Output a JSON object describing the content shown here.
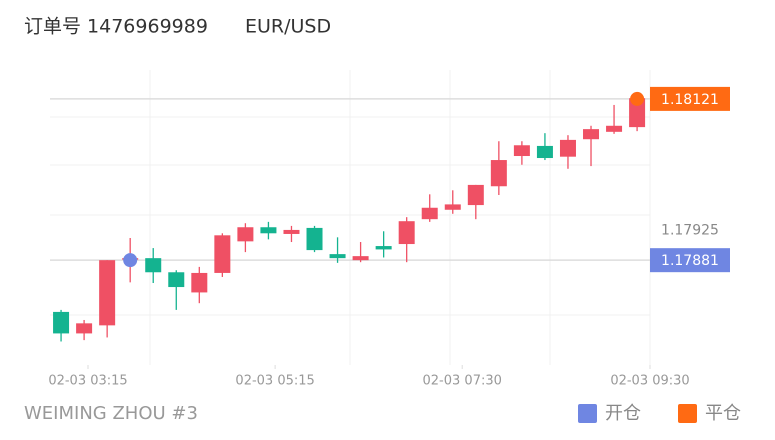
{
  "header": {
    "order": "订单号 1476969989",
    "symbol": "EUR/USD"
  },
  "chart_data": {
    "type": "candlestick",
    "categories": [
      null,
      null,
      null,
      null,
      null,
      null,
      null,
      null,
      null,
      null,
      null,
      null,
      null,
      null,
      null,
      null,
      null,
      null,
      null,
      null,
      null,
      null,
      null,
      null,
      null,
      null
    ],
    "open": [
      1.17804,
      1.17772,
      1.17784,
      1.17882,
      1.17884,
      1.17863,
      1.17833,
      1.17862,
      1.17909,
      1.1793,
      1.1792,
      1.17929,
      1.1789,
      1.17881,
      1.17902,
      1.17905,
      1.17942,
      1.17956,
      1.17963,
      1.17991,
      1.18036,
      1.18051,
      1.18035,
      1.18061,
      1.18072,
      1.18079
    ],
    "high": [
      1.17807,
      1.17792,
      1.17881,
      1.17914,
      1.17899,
      1.17866,
      1.17871,
      1.17921,
      1.17936,
      1.17938,
      1.17932,
      1.17932,
      1.17915,
      1.17908,
      1.17924,
      1.17945,
      1.17979,
      1.17985,
      1.17993,
      1.18058,
      1.18058,
      1.1807,
      1.18067,
      1.18081,
      1.18112,
      1.18127
    ],
    "low": [
      1.1776,
      1.17762,
      1.17766,
      1.17848,
      1.17847,
      1.17807,
      1.17817,
      1.17856,
      1.17893,
      1.17912,
      1.17908,
      1.17893,
      1.17877,
      1.17878,
      1.17885,
      1.17878,
      1.17938,
      1.1795,
      1.17942,
      1.17978,
      1.18023,
      1.1803,
      1.18017,
      1.18021,
      1.18069,
      1.18073
    ],
    "close": [
      1.17772,
      1.17787,
      1.17881,
      1.17884,
      1.17863,
      1.17841,
      1.17862,
      1.17918,
      1.1793,
      1.17921,
      1.17926,
      1.17896,
      1.17884,
      1.17887,
      1.17897,
      1.17939,
      1.17959,
      1.17964,
      1.17993,
      1.1803,
      1.18052,
      1.18033,
      1.1806,
      1.18076,
      1.18081,
      1.18122
    ],
    "up_color": "#ef5064",
    "down_color": "#14b390",
    "xlim": [
      -0.48,
      25.56
    ],
    "ylim": [
      1.17725,
      1.18164
    ],
    "xticks": [
      {
        "value": 1.17,
        "label": "02-03 03:15"
      },
      {
        "value": 9.29,
        "label": "02-03 05:15"
      },
      {
        "value": 17.41,
        "label": "02-03 07:30"
      },
      {
        "value": 25.56,
        "label": "02-03 09:30"
      }
    ],
    "markers": [
      {
        "name": "开仓",
        "color": "#6f86e2",
        "x": 3,
        "value": 1.17881
      },
      {
        "name": "平仓",
        "color": "#ff6a13",
        "x": 25,
        "value": 1.18121
      }
    ],
    "price_label": 1.17925
  },
  "footer": {
    "account": "WEIMING ZHOU #3"
  }
}
